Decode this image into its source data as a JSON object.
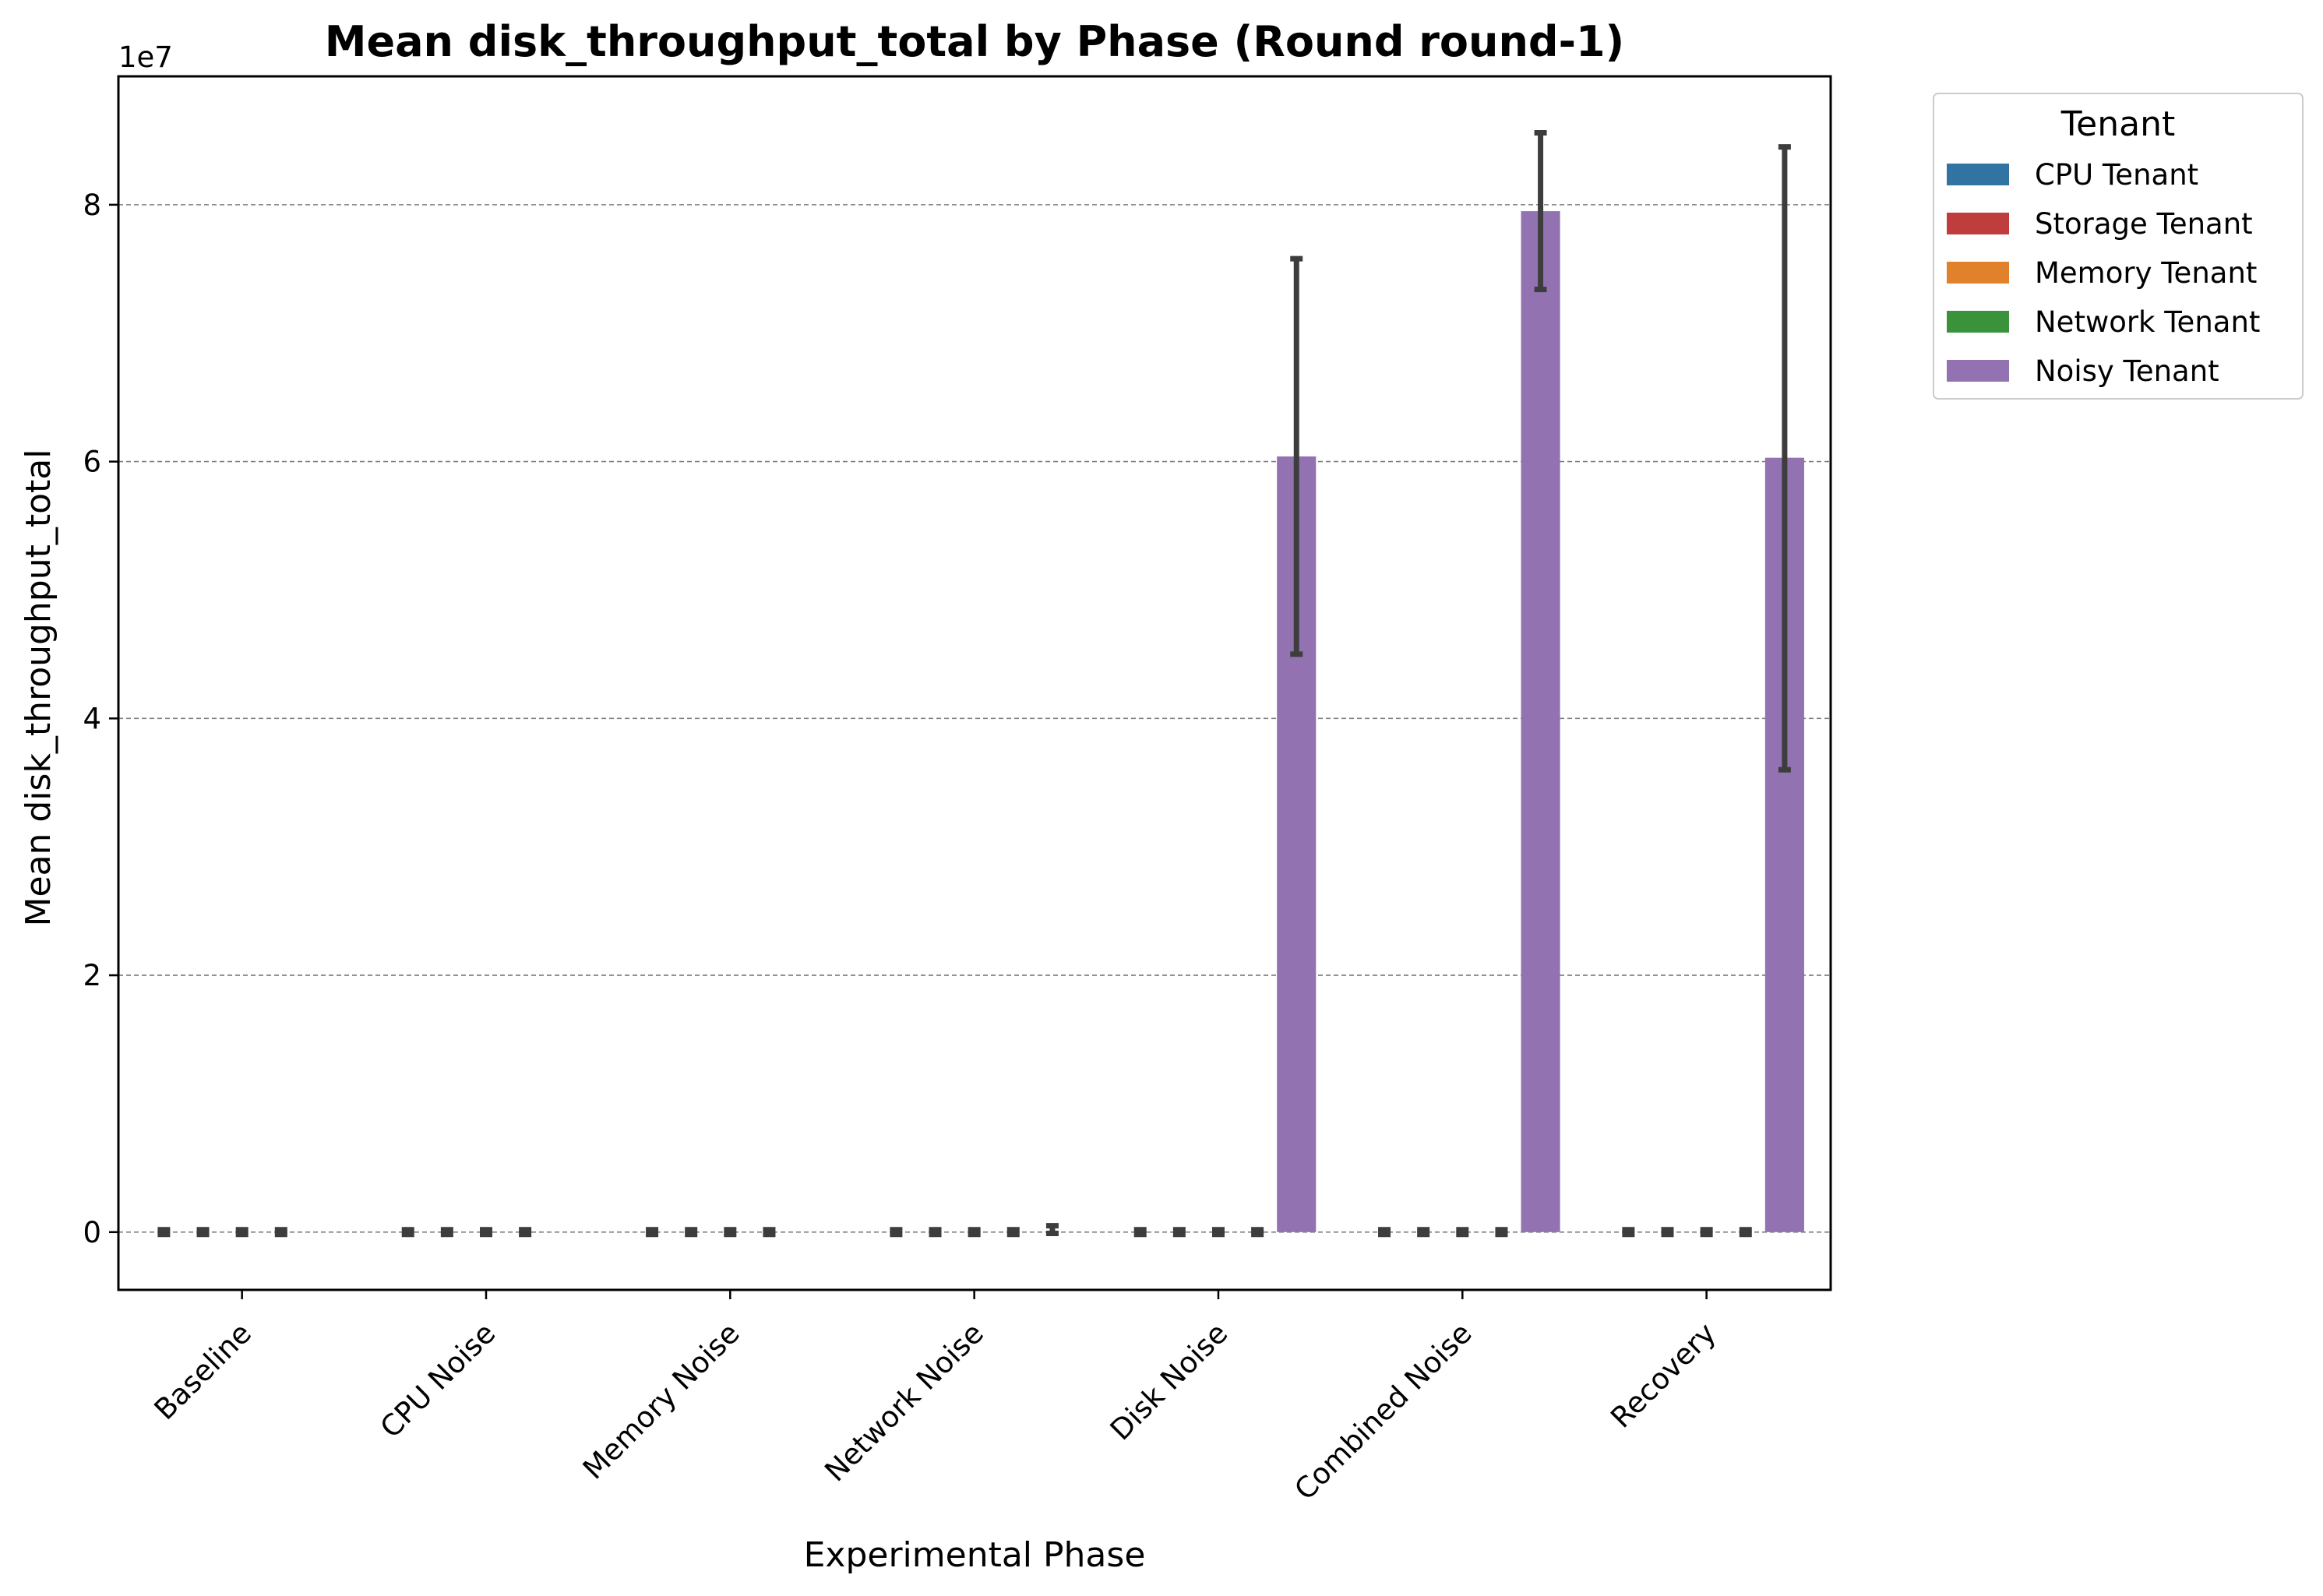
{
  "chart_data": {
    "type": "bar",
    "title": "Mean disk_throughput_total by Phase (Round round-1)",
    "xlabel": "Experimental Phase",
    "ylabel": "Mean disk_throughput_total",
    "y_offset_label": "1e7",
    "y_scale": 10000000,
    "ylim": [
      -4500000,
      90000000
    ],
    "yticks": [
      0,
      20000000,
      40000000,
      60000000,
      80000000
    ],
    "ytick_labels": [
      "0",
      "2",
      "4",
      "6",
      "8"
    ],
    "grid": "y-dashed",
    "legend_title": "Tenant",
    "legend_position": "outside-right-top",
    "categories": [
      "Baseline",
      "CPU Noise",
      "Memory Noise",
      "Network Noise",
      "Disk Noise",
      "Combined Noise",
      "Recovery"
    ],
    "series": [
      {
        "name": "CPU Tenant",
        "color": "#3274a1",
        "values": [
          0,
          0,
          0,
          0,
          0,
          0,
          0
        ],
        "ci": [
          [
            0,
            0
          ],
          [
            0,
            0
          ],
          [
            0,
            0
          ],
          [
            0,
            0
          ],
          [
            0,
            0
          ],
          [
            0,
            0
          ],
          [
            0,
            0
          ]
        ]
      },
      {
        "name": "Storage Tenant",
        "color": "#c03d3e",
        "values": [
          0,
          0,
          0,
          0,
          0,
          0,
          0
        ],
        "ci": [
          [
            0,
            0
          ],
          [
            0,
            0
          ],
          [
            0,
            0
          ],
          [
            0,
            0
          ],
          [
            0,
            0
          ],
          [
            0,
            0
          ],
          [
            0,
            0
          ]
        ]
      },
      {
        "name": "Memory Tenant",
        "color": "#e1812c",
        "values": [
          0,
          0,
          0,
          0,
          0,
          0,
          0
        ],
        "ci": [
          [
            0,
            0
          ],
          [
            0,
            0
          ],
          [
            0,
            0
          ],
          [
            0,
            0
          ],
          [
            0,
            0
          ],
          [
            0,
            0
          ],
          [
            0,
            0
          ]
        ]
      },
      {
        "name": "Network Tenant",
        "color": "#3a923a",
        "values": [
          0,
          0,
          0,
          0,
          0,
          0,
          0
        ],
        "ci": [
          [
            0,
            0
          ],
          [
            0,
            0
          ],
          [
            0,
            0
          ],
          [
            0,
            0
          ],
          [
            0,
            0
          ],
          [
            0,
            0
          ],
          [
            0,
            0
          ]
        ]
      },
      {
        "name": "Noisy Tenant",
        "color": "#9372b2",
        "values": [
          null,
          null,
          null,
          0,
          60400000,
          79500000,
          60300000
        ],
        "ci": [
          null,
          null,
          null,
          [
            -100000,
            500000
          ],
          [
            45000000,
            75800000
          ],
          [
            73400000,
            85600000
          ],
          [
            36000000,
            84500000
          ]
        ]
      }
    ]
  }
}
